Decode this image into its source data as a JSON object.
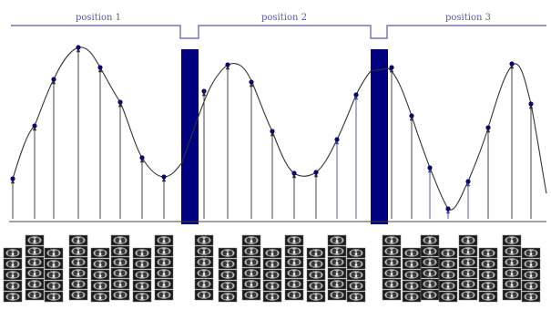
{
  "positions": [
    {
      "label": "position 1"
    },
    {
      "label": "position 2"
    },
    {
      "label": "position 3"
    }
  ],
  "colors": {
    "bracket": "#5a5aa8",
    "gap_bar": "#000080",
    "curve": "#333333",
    "sample_point": "#0a0a6e",
    "stem": "#333333",
    "stem_alt": "#4a4a9a",
    "axis": "#444444",
    "tile_bg": "#1c1c1c"
  },
  "icons": {
    "sample_stem": "arrow-up-icon",
    "slice_stack": "ct-slice-stack-icon"
  }
}
